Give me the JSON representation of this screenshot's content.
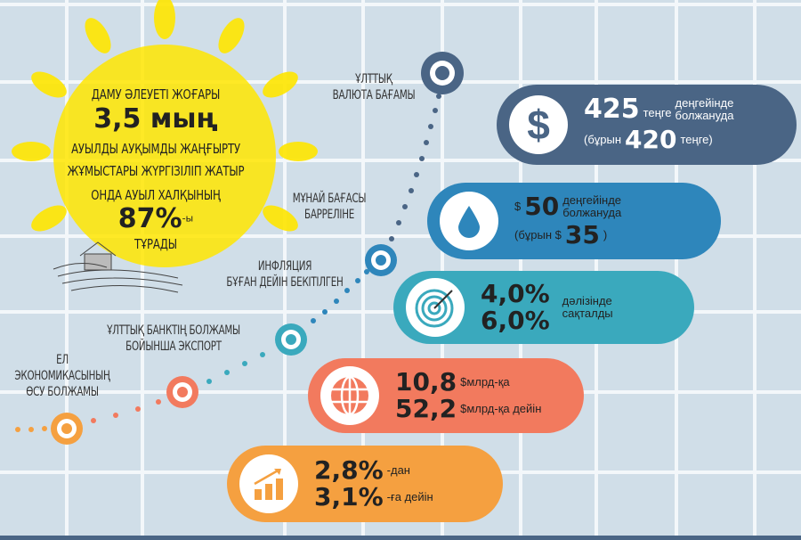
{
  "sun": {
    "line1": "ДАМУ ӘЛЕУЕТІ ЖОҒАРЫ",
    "value": "3,5 мың",
    "line2": "АУЫЛДЫ АУҚЫМДЫ ЖАҢҒЫРТУ",
    "line3": "ЖҰМЫСТАРЫ ЖҮРГІЗІЛІП ЖАТЫР",
    "line4": "ОНДА АУЫЛ ХАЛҚЫНЫҢ",
    "percent": "87%",
    "percent_suffix": "-ы",
    "line5": "ТҰРАДЫ"
  },
  "timeline_labels": {
    "currency": [
      "ҰЛТТЫҚ",
      "ВАЛЮТА БАҒАМЫ"
    ],
    "oil": [
      "МҰНАЙ БАҒАСЫ",
      "БАРРЕЛІНЕ"
    ],
    "inflation": [
      "ИНФЛЯЦИЯ",
      "БҰҒАН ДЕЙІН БЕКІТІЛГЕН"
    ],
    "export": [
      "ҰЛТТЫҚ БАНКТІҢ БОЛЖАМЫ",
      "БОЙЫНША ЭКСПОРТ"
    ],
    "growth": [
      "ЕЛ",
      "ЭКОНОМИКАСЫНЫҢ",
      "ӨСУ БОЛЖАМЫ"
    ]
  },
  "cards": {
    "currency": {
      "icon": "dollar-icon",
      "color": "#4a6585",
      "value": "425",
      "unit": "теңге",
      "note1": "деңгейінде",
      "note2": "болжануда",
      "prev_prefix": "(бұрын",
      "prev_value": "420",
      "prev_suffix": "теңге)"
    },
    "oil": {
      "icon": "oil-drop-icon",
      "color": "#2e86bb",
      "currency": "$",
      "value": "50",
      "note1": "деңгейінде",
      "note2": "болжануда",
      "prev_prefix": "(бұрын $",
      "prev_value": "35",
      "prev_suffix": ")"
    },
    "inflation": {
      "icon": "target-icon",
      "color": "#3aa9bd",
      "from": "4,0%",
      "to": "6,0%",
      "note1": "дәлізінде",
      "note2": "сақталды"
    },
    "export": {
      "icon": "globe-icon",
      "color": "#f27a5e",
      "from": "10,8",
      "from_unit": "$млрд-қа",
      "to": "52,2",
      "to_unit": "$млрд-қа дейін"
    },
    "growth": {
      "icon": "growth-chart-icon",
      "color": "#f5a040",
      "from": "2,8%",
      "from_suffix": "-дан",
      "to": "3,1%",
      "to_suffix": "-ға дейін"
    }
  }
}
